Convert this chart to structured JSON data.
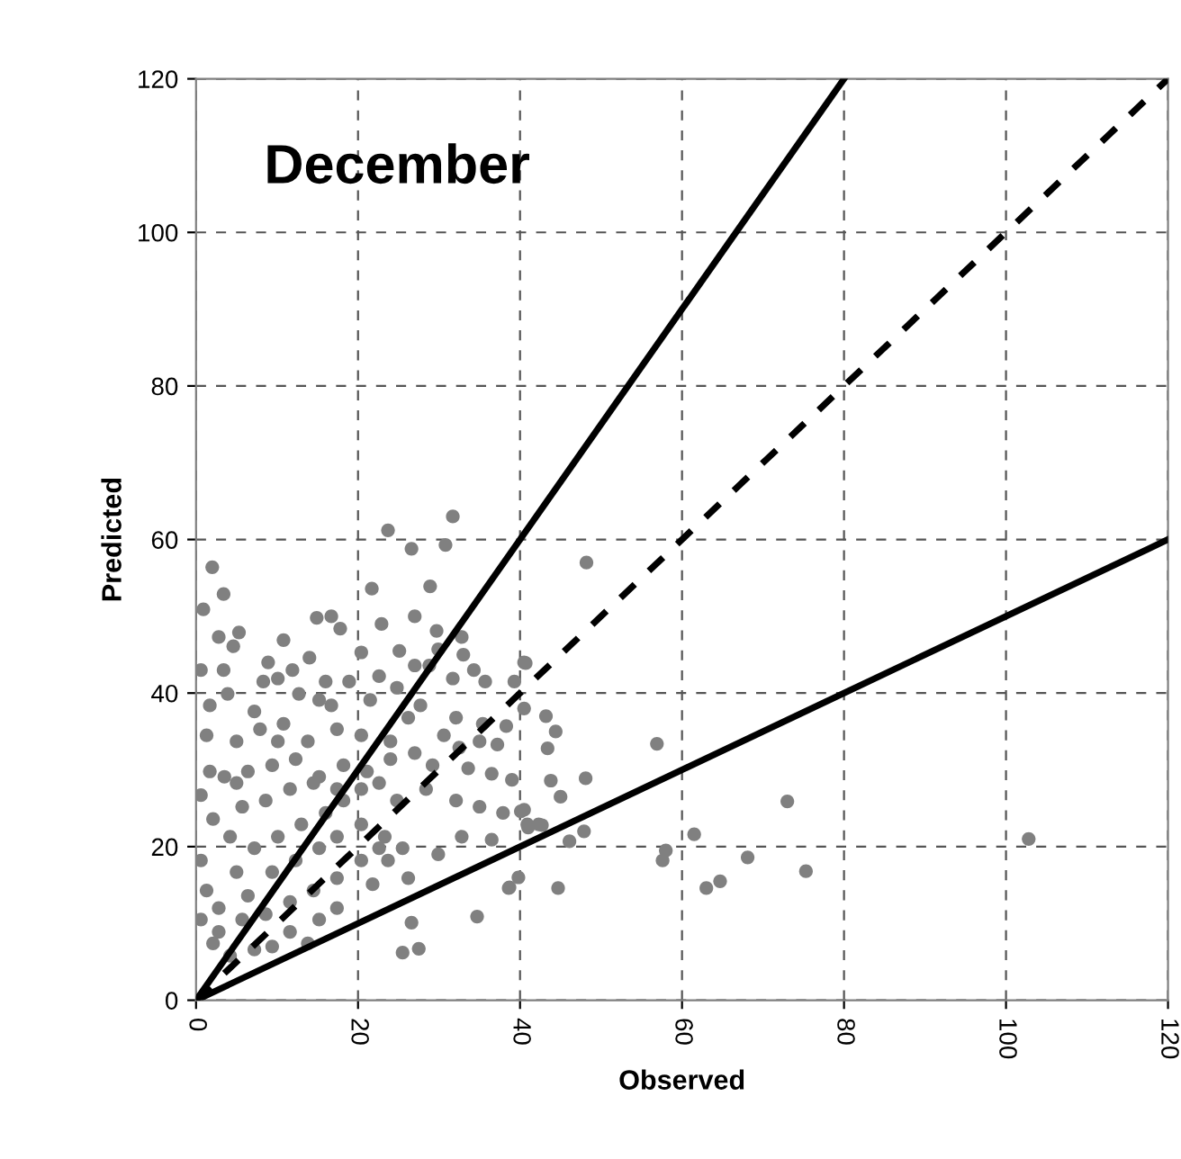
{
  "chart_data": {
    "type": "scatter",
    "title": "December",
    "xlabel": "Observed",
    "ylabel": "Predicted",
    "xlim": [
      0,
      120
    ],
    "ylim": [
      0,
      120
    ],
    "xticks": [
      0,
      20,
      40,
      60,
      80,
      100,
      120
    ],
    "yticks": [
      0,
      20,
      40,
      60,
      80,
      100,
      120
    ],
    "grid": true,
    "legend": false,
    "marker": "circle",
    "series": [
      {
        "color": "#808080",
        "x": [
          48.2,
          56.9,
          73,
          102.8,
          75.3,
          68.1,
          64.7,
          63,
          61.5,
          58,
          57.6,
          47.9,
          46.1,
          44.7,
          48.1,
          45,
          43.8,
          44.4,
          43.2,
          43.4,
          40.7,
          40.1,
          41,
          42.7,
          39.8,
          38.6,
          31.7,
          23.7,
          30.8,
          26.6,
          2,
          3.4,
          0.9,
          21.7,
          28.9,
          14.9,
          16.7,
          17.8,
          5.3,
          2.8,
          4.6,
          10.8,
          22.9,
          27,
          29.7,
          32.8,
          20.4,
          14,
          11.9,
          8.9,
          3.4,
          0.6,
          25.1,
          27,
          29.9,
          33,
          34.3,
          35.7,
          31.7,
          28.8,
          39.3,
          40.5,
          8.3,
          10.1,
          16,
          18.9,
          22.6,
          24.8,
          3.9,
          1.7,
          12.7,
          15.2,
          21.5,
          27.7,
          26.2,
          32.1,
          35.4,
          38.3,
          40.5,
          30.6,
          1.3,
          5,
          7.9,
          10.8,
          13.8,
          17.4,
          20.4,
          24,
          27,
          32.5,
          35,
          37.2,
          29.2,
          33.6,
          36.5,
          39,
          0.6,
          3.5,
          6.4,
          9.4,
          12.3,
          15.2,
          18.2,
          21.1,
          24,
          28.4,
          32.1,
          35,
          37.9,
          40.5,
          42.3,
          40.9,
          29.9,
          32.8,
          36.5,
          26.2,
          23.7,
          38.7,
          34.7,
          26.6,
          25.5,
          27.5,
          13.8,
          0.6,
          1.3,
          0.6,
          2.1,
          4.2,
          7.2,
          9.4,
          2.8,
          5,
          7.2,
          10.1,
          13,
          16,
          18.2,
          6.4,
          9.4,
          12.3,
          15.2,
          17.4,
          20.4,
          4.2,
          2.1,
          5.7,
          8.6,
          11.6,
          14.5,
          17.4,
          20.4,
          22.6,
          24.8,
          2.8,
          5.7,
          8.6,
          11.6,
          14.5,
          17.4,
          20.4,
          22.6,
          11.6,
          15.2,
          17.4,
          23.3,
          25.5,
          21.8,
          5,
          1.7,
          10.1,
          7.2,
          16.7
        ],
        "values": [
          57,
          33.4,
          25.9,
          21,
          16.8,
          18.6,
          15.5,
          14.6,
          21.6,
          19.5,
          18.2,
          22,
          20.7,
          14.6,
          28.9,
          26.5,
          28.6,
          35,
          37,
          32.8,
          43.9,
          24.6,
          22.5,
          22.8,
          16,
          14.6,
          63,
          61.2,
          59.3,
          58.8,
          56.4,
          52.9,
          50.9,
          53.6,
          53.9,
          49.8,
          50,
          48.4,
          47.9,
          47.3,
          46.1,
          46.9,
          49,
          50,
          48.1,
          47.3,
          45.3,
          44.6,
          43,
          44,
          43,
          43,
          45.5,
          43.6,
          45.7,
          45,
          43,
          41.5,
          41.9,
          43.6,
          41.5,
          44,
          41.5,
          41.9,
          41.5,
          41.5,
          42.2,
          40.7,
          39.9,
          38.4,
          39.9,
          39.1,
          39.1,
          38.4,
          36.8,
          36.8,
          36,
          35.7,
          38,
          34.5,
          34.5,
          33.7,
          35.3,
          36,
          33.7,
          35.3,
          34.5,
          33.7,
          32.2,
          32.9,
          33.7,
          33.3,
          30.6,
          30.2,
          29.5,
          28.7,
          26.7,
          29.1,
          29.8,
          30.6,
          31.4,
          29.1,
          30.6,
          29.8,
          31.4,
          27.5,
          26,
          25.2,
          24.4,
          24.8,
          22.9,
          22.9,
          19,
          21.3,
          20.9,
          15.9,
          18.2,
          14.7,
          10.9,
          10.1,
          6.2,
          6.7,
          7.4,
          18.2,
          14.3,
          10.5,
          7.4,
          5.8,
          6.6,
          7,
          12,
          16.7,
          19.8,
          21.3,
          22.9,
          24.4,
          26,
          13.6,
          16.7,
          18.2,
          19.8,
          21.3,
          22.9,
          21.3,
          23.6,
          25.2,
          26,
          27.5,
          28.3,
          27.5,
          27.5,
          28.3,
          26,
          8.9,
          10.5,
          11.2,
          12.8,
          14.3,
          15.9,
          18.2,
          19.8,
          8.9,
          10.5,
          12,
          21.3,
          19.8,
          15.1,
          28.3,
          29.8,
          33.7,
          37.6,
          38.4
        ]
      },
      {
        "type": "line",
        "color": "#000000",
        "line_style": "solid",
        "marker": "none",
        "x": [
          0,
          80
        ],
        "values": [
          0,
          120
        ]
      },
      {
        "type": "line",
        "color": "#000000",
        "line_style": "dashed",
        "marker": "none",
        "x": [
          0,
          120
        ],
        "values": [
          0,
          120
        ]
      },
      {
        "type": "line",
        "color": "#000000",
        "line_style": "solid",
        "marker": "none",
        "x": [
          0,
          120
        ],
        "values": [
          0,
          60
        ]
      }
    ]
  }
}
